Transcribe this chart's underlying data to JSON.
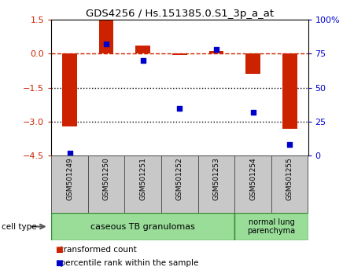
{
  "title": "GDS4256 / Hs.151385.0.S1_3p_a_at",
  "samples": [
    "GSM501249",
    "GSM501250",
    "GSM501251",
    "GSM501252",
    "GSM501253",
    "GSM501254",
    "GSM501255"
  ],
  "transformed_count": [
    -3.2,
    1.5,
    0.35,
    -0.05,
    0.12,
    -0.9,
    -3.3
  ],
  "percentile_rank": [
    2,
    82,
    70,
    35,
    78,
    32,
    8
  ],
  "ylim_left": [
    -4.5,
    1.5
  ],
  "ylim_right": [
    0,
    100
  ],
  "yticks_left": [
    1.5,
    0,
    -1.5,
    -3,
    -4.5
  ],
  "yticks_right": [
    0,
    25,
    50,
    75,
    100
  ],
  "bar_color": "#cc2200",
  "dot_color": "#0000cc",
  "dashed_line_color": "#cc2200",
  "dotted_line_color": "#000000",
  "bg_plot": "#ffffff",
  "bg_sample_row": "#c8c8c8",
  "bg_group1": "#99dd99",
  "bg_group2": "#99dd99",
  "group1_label": "caseous TB granulomas",
  "group2_label": "normal lung\nparenchyma",
  "group1_count": 5,
  "group2_count": 2,
  "cell_type_label": "cell type",
  "legend_bar_label": "transformed count",
  "legend_dot_label": "percentile rank within the sample"
}
